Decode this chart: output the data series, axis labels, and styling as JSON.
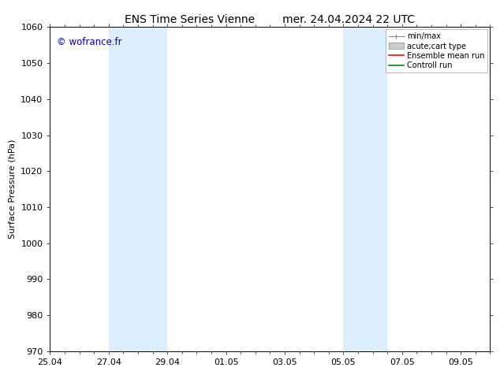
{
  "title_left": "ENS Time Series Vienne",
  "title_right": "mer. 24.04.2024 22 UTC",
  "ylabel": "Surface Pressure (hPa)",
  "ylim": [
    970,
    1060
  ],
  "yticks": [
    970,
    980,
    990,
    1000,
    1010,
    1020,
    1030,
    1040,
    1050,
    1060
  ],
  "xlim": [
    0,
    15.0
  ],
  "xtick_vals": [
    0,
    2,
    4,
    6,
    8,
    10,
    12,
    14
  ],
  "xtick_labels": [
    "25.04",
    "27.04",
    "29.04",
    "01.05",
    "03.05",
    "05.05",
    "07.05",
    "09.05"
  ],
  "shaded_bands": [
    {
      "start_day": 2.0,
      "end_day": 4.0
    },
    {
      "start_day": 10.0,
      "end_day": 11.5
    }
  ],
  "shaded_color": "#ddeeff",
  "copyright_text": "© wofrance.fr",
  "copyright_color": "#0000cc",
  "bg_color": "#ffffff",
  "spine_color": "#000000",
  "title_fontsize": 10,
  "axis_fontsize": 8,
  "tick_fontsize": 8,
  "legend_fontsize": 7,
  "figwidth": 6.34,
  "figheight": 4.9,
  "dpi": 100
}
